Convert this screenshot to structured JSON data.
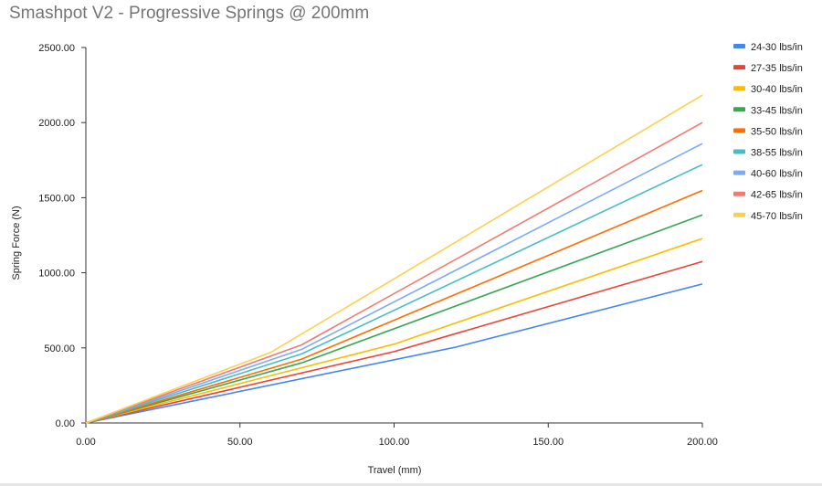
{
  "chart_data": {
    "type": "line",
    "title": "Smashpot V2 - Progressive Springs @ 200mm",
    "xlabel": "Travel (mm)",
    "ylabel": "Spring Force (N)",
    "xlim": [
      0,
      200
    ],
    "ylim": [
      0,
      2500
    ],
    "x_ticks": [
      "0.00",
      "50.00",
      "100.00",
      "150.00",
      "200.00"
    ],
    "y_ticks": [
      "0.00",
      "500.00",
      "1000.00",
      "1500.00",
      "2000.00",
      "2500.00"
    ],
    "grid": false,
    "legend_position": "right",
    "series": [
      {
        "name": "24-30 lbs/in",
        "color": "#4285f4",
        "points": [
          [
            0,
            0
          ],
          [
            120,
            505
          ],
          [
            200,
            925
          ]
        ]
      },
      {
        "name": "27-35 lbs/in",
        "color": "#ea4335",
        "points": [
          [
            0,
            0
          ],
          [
            100,
            475
          ],
          [
            200,
            1075
          ]
        ]
      },
      {
        "name": "30-40 lbs/in",
        "color": "#fbbc04",
        "points": [
          [
            0,
            0
          ],
          [
            100,
            525
          ],
          [
            200,
            1228
          ]
        ]
      },
      {
        "name": "33-45 lbs/in",
        "color": "#34a853",
        "points": [
          [
            0,
            0
          ],
          [
            70,
            400
          ],
          [
            200,
            1385
          ]
        ]
      },
      {
        "name": "35-50 lbs/in",
        "color": "#ff6d01",
        "points": [
          [
            0,
            0
          ],
          [
            70,
            425
          ],
          [
            200,
            1548
          ]
        ]
      },
      {
        "name": "38-55 lbs/in",
        "color": "#46bdc6",
        "points": [
          [
            0,
            0
          ],
          [
            70,
            460
          ],
          [
            200,
            1720
          ]
        ]
      },
      {
        "name": "40-60 lbs/in",
        "color": "#7baaf7",
        "points": [
          [
            0,
            0
          ],
          [
            70,
            490
          ],
          [
            200,
            1860
          ]
        ]
      },
      {
        "name": "42-65 lbs/in",
        "color": "#f07b72",
        "points": [
          [
            0,
            0
          ],
          [
            70,
            520
          ],
          [
            200,
            2000
          ]
        ]
      },
      {
        "name": "45-70 lbs/in",
        "color": "#fcd04f",
        "points": [
          [
            0,
            0
          ],
          [
            60,
            470
          ],
          [
            200,
            2183
          ]
        ]
      }
    ]
  }
}
